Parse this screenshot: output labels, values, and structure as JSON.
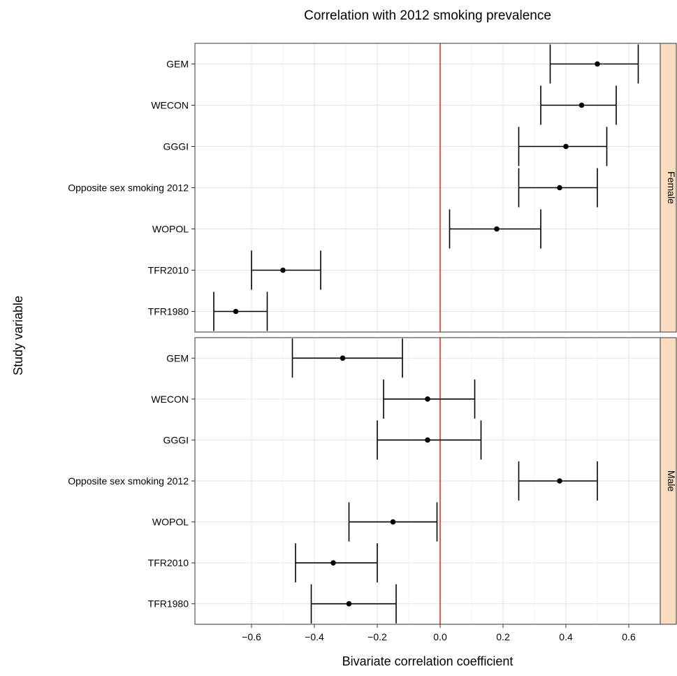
{
  "chart_data": {
    "type": "scatter",
    "title": "Correlation with 2012 smoking prevalence",
    "xlabel": "Bivariate correlation coefficient",
    "ylabel": "Study variable",
    "xlim": [
      -0.78,
      0.7
    ],
    "xticks": [
      -0.6,
      -0.4,
      -0.2,
      0.0,
      0.2,
      0.4,
      0.6
    ],
    "xtick_labels": [
      "−0.6",
      "−0.4",
      "−0.2",
      "0.0",
      "0.2",
      "0.4",
      "0.6"
    ],
    "reference_line": 0,
    "grid": true,
    "error_bars": true,
    "categories": [
      "GEM",
      "WECON",
      "GGGI",
      "Opposite sex smoking 2012",
      "WOPOL",
      "TFR2010",
      "TFR1980"
    ],
    "panels": [
      {
        "name": "Female",
        "points": [
          {
            "label": "GEM",
            "estimate": 0.5,
            "lower": 0.35,
            "upper": 0.63
          },
          {
            "label": "WECON",
            "estimate": 0.45,
            "lower": 0.32,
            "upper": 0.56
          },
          {
            "label": "GGGI",
            "estimate": 0.4,
            "lower": 0.25,
            "upper": 0.53
          },
          {
            "label": "Opposite sex smoking 2012",
            "estimate": 0.38,
            "lower": 0.25,
            "upper": 0.5
          },
          {
            "label": "WOPOL",
            "estimate": 0.18,
            "lower": 0.03,
            "upper": 0.32
          },
          {
            "label": "TFR2010",
            "estimate": -0.5,
            "lower": -0.6,
            "upper": -0.38
          },
          {
            "label": "TFR1980",
            "estimate": -0.65,
            "lower": -0.72,
            "upper": -0.55
          }
        ]
      },
      {
        "name": "Male",
        "points": [
          {
            "label": "GEM",
            "estimate": -0.31,
            "lower": -0.47,
            "upper": -0.12
          },
          {
            "label": "WECON",
            "estimate": -0.04,
            "lower": -0.18,
            "upper": 0.11
          },
          {
            "label": "GGGI",
            "estimate": -0.04,
            "lower": -0.2,
            "upper": 0.13
          },
          {
            "label": "Opposite sex smoking 2012",
            "estimate": 0.38,
            "lower": 0.25,
            "upper": 0.5
          },
          {
            "label": "WOPOL",
            "estimate": -0.15,
            "lower": -0.29,
            "upper": -0.01
          },
          {
            "label": "TFR2010",
            "estimate": -0.34,
            "lower": -0.46,
            "upper": -0.2
          },
          {
            "label": "TFR1980",
            "estimate": -0.29,
            "lower": -0.41,
            "upper": -0.14
          }
        ]
      }
    ],
    "colors": {
      "strip": "#fbdcbf",
      "reference_line": "#e8341c",
      "grid": "#e3e3e3",
      "frame": "#333333",
      "ink": "#000000"
    }
  }
}
